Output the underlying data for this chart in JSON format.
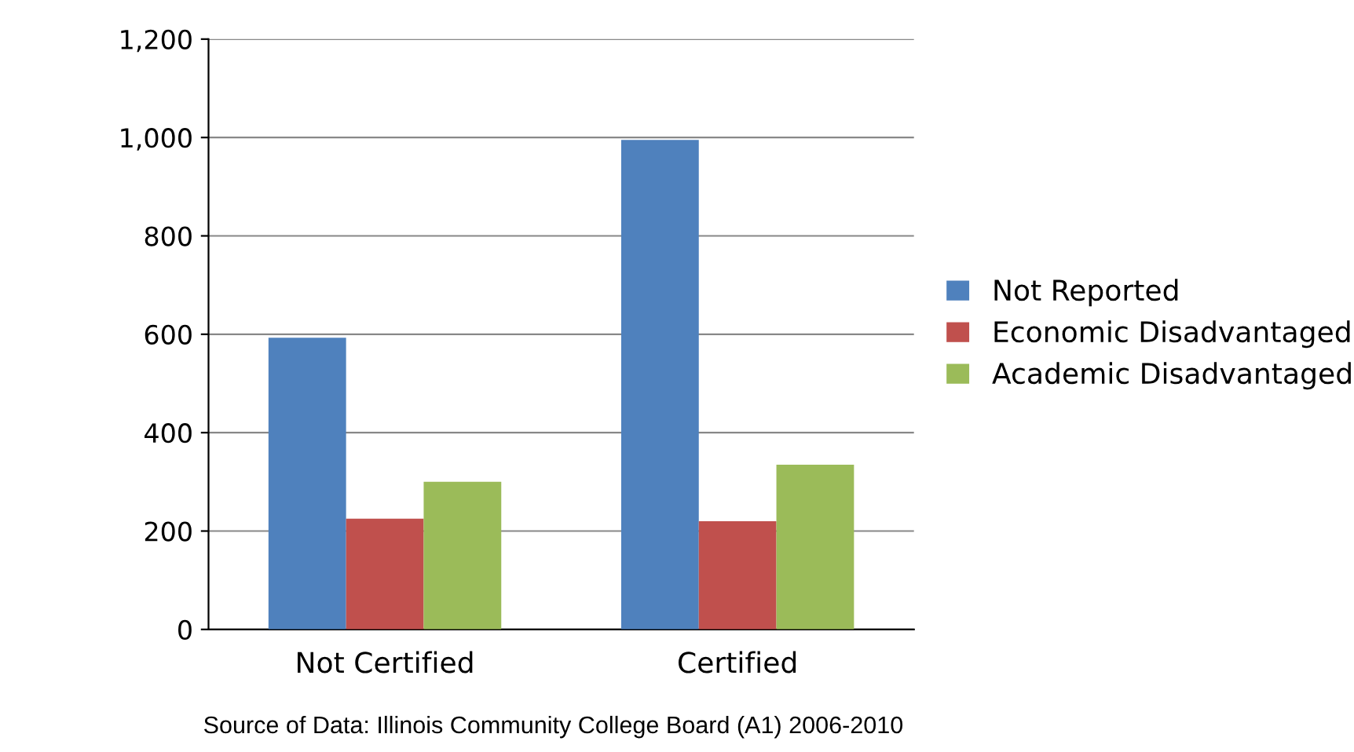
{
  "chart_data": {
    "type": "bar",
    "categories": [
      "Not Certified",
      "Certified"
    ],
    "series": [
      {
        "name": "Not Reported",
        "color": "#4f81bd",
        "values": [
          593,
          995
        ]
      },
      {
        "name": "Economic Disadvantaged",
        "color": "#c0504d",
        "values": [
          225,
          220
        ]
      },
      {
        "name": "Academic Disadvantaged",
        "color": "#9bbb59",
        "values": [
          300,
          335
        ]
      }
    ],
    "ylim": [
      0,
      1200
    ],
    "yticks": [
      0,
      {
        "value": 200,
        "label": "200"
      },
      {
        "value": 400,
        "label": "400"
      },
      {
        "value": 600,
        "label": "600"
      },
      {
        "value": 800,
        "label": "800"
      },
      {
        "value": 1000,
        "label": "1,000"
      },
      {
        "value": 1200,
        "label": "1,200"
      }
    ],
    "grid": "y",
    "legend": "right",
    "annotations": [
      "Source of Data: Illinois Community College Board (A1) 2006-2010"
    ]
  }
}
